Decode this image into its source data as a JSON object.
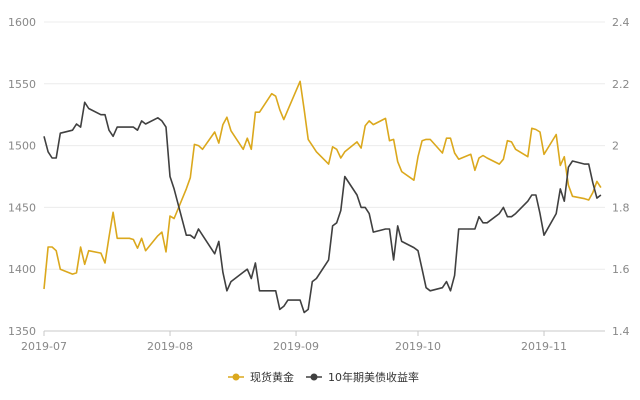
{
  "chart_data": {
    "type": "line",
    "x_ticks": [
      "2019-07",
      "2019-08",
      "2019-09",
      "2019-10",
      "2019-11"
    ],
    "y_left": {
      "min": 1350,
      "max": 1600,
      "ticks": [
        1350,
        1400,
        1450,
        1500,
        1550,
        1600
      ]
    },
    "y_right": {
      "min": 1.4,
      "max": 2.4,
      "ticks": [
        1.4,
        1.6,
        1.8,
        2,
        2.2,
        2.4
      ]
    },
    "grid": true,
    "legend_position": "bottom-center",
    "series": [
      {
        "name": "现货黄金",
        "axis": "left",
        "color": "#dba81d",
        "x": [
          "2019-07-01",
          "2019-07-02",
          "2019-07-03",
          "2019-07-04",
          "2019-07-05",
          "2019-07-08",
          "2019-07-09",
          "2019-07-10",
          "2019-07-11",
          "2019-07-12",
          "2019-07-15",
          "2019-07-16",
          "2019-07-17",
          "2019-07-18",
          "2019-07-19",
          "2019-07-22",
          "2019-07-23",
          "2019-07-24",
          "2019-07-25",
          "2019-07-26",
          "2019-07-29",
          "2019-07-30",
          "2019-07-31",
          "2019-08-01",
          "2019-08-02",
          "2019-08-05",
          "2019-08-06",
          "2019-08-07",
          "2019-08-08",
          "2019-08-09",
          "2019-08-12",
          "2019-08-13",
          "2019-08-14",
          "2019-08-15",
          "2019-08-16",
          "2019-08-19",
          "2019-08-20",
          "2019-08-21",
          "2019-08-22",
          "2019-08-23",
          "2019-08-26",
          "2019-08-27",
          "2019-08-28",
          "2019-08-29",
          "2019-08-30",
          "2019-09-02",
          "2019-09-03",
          "2019-09-04",
          "2019-09-05",
          "2019-09-06",
          "2019-09-09",
          "2019-09-10",
          "2019-09-11",
          "2019-09-12",
          "2019-09-13",
          "2019-09-16",
          "2019-09-17",
          "2019-09-18",
          "2019-09-19",
          "2019-09-20",
          "2019-09-23",
          "2019-09-24",
          "2019-09-25",
          "2019-09-26",
          "2019-09-27",
          "2019-09-30",
          "2019-10-01",
          "2019-10-02",
          "2019-10-03",
          "2019-10-04",
          "2019-10-07",
          "2019-10-08",
          "2019-10-09",
          "2019-10-10",
          "2019-10-11",
          "2019-10-14",
          "2019-10-15",
          "2019-10-16",
          "2019-10-17",
          "2019-10-18",
          "2019-10-21",
          "2019-10-22",
          "2019-10-23",
          "2019-10-24",
          "2019-10-25",
          "2019-10-28",
          "2019-10-29",
          "2019-10-30",
          "2019-10-31",
          "2019-11-01",
          "2019-11-04",
          "2019-11-05",
          "2019-11-06",
          "2019-11-07",
          "2019-11-08",
          "2019-11-11",
          "2019-11-12",
          "2019-11-13",
          "2019-11-14",
          "2019-11-15"
        ],
        "values": [
          1384,
          1418,
          1418,
          1415,
          1400,
          1396,
          1397,
          1418,
          1404,
          1415,
          1413,
          1405,
          1426,
          1446,
          1425,
          1425,
          1424,
          1417,
          1425,
          1415,
          1427,
          1430,
          1414,
          1443,
          1441,
          1465,
          1474,
          1501,
          1500,
          1497,
          1511,
          1502,
          1517,
          1523,
          1512,
          1497,
          1506,
          1497,
          1527,
          1527,
          1542,
          1540,
          1529,
          1521,
          1529,
          1552,
          1529,
          1505,
          1500,
          1495,
          1485,
          1499,
          1497,
          1490,
          1495,
          1503,
          1498,
          1516,
          1520,
          1517,
          1522,
          1504,
          1505,
          1487,
          1479,
          1472,
          1491,
          1504,
          1505,
          1505,
          1494,
          1506,
          1506,
          1494,
          1489,
          1493,
          1480,
          1490,
          1492,
          1490,
          1485,
          1489,
          1504,
          1503,
          1497,
          1491,
          1514,
          1513,
          1511,
          1493,
          1509,
          1484,
          1491,
          1468,
          1459,
          1457,
          1456,
          1462,
          1471,
          1466
        ]
      },
      {
        "name": "10年期美债收益率",
        "axis": "right",
        "color": "#404040",
        "x": [
          "2019-07-01",
          "2019-07-02",
          "2019-07-03",
          "2019-07-04",
          "2019-07-05",
          "2019-07-08",
          "2019-07-09",
          "2019-07-10",
          "2019-07-11",
          "2019-07-12",
          "2019-07-15",
          "2019-07-16",
          "2019-07-17",
          "2019-07-18",
          "2019-07-19",
          "2019-07-22",
          "2019-07-23",
          "2019-07-24",
          "2019-07-25",
          "2019-07-26",
          "2019-07-29",
          "2019-07-30",
          "2019-07-31",
          "2019-08-01",
          "2019-08-02",
          "2019-08-05",
          "2019-08-06",
          "2019-08-07",
          "2019-08-08",
          "2019-08-09",
          "2019-08-12",
          "2019-08-13",
          "2019-08-14",
          "2019-08-15",
          "2019-08-16",
          "2019-08-19",
          "2019-08-20",
          "2019-08-21",
          "2019-08-22",
          "2019-08-23",
          "2019-08-26",
          "2019-08-27",
          "2019-08-28",
          "2019-08-29",
          "2019-08-30",
          "2019-09-02",
          "2019-09-03",
          "2019-09-04",
          "2019-09-05",
          "2019-09-06",
          "2019-09-09",
          "2019-09-10",
          "2019-09-11",
          "2019-09-12",
          "2019-09-13",
          "2019-09-16",
          "2019-09-17",
          "2019-09-18",
          "2019-09-19",
          "2019-09-20",
          "2019-09-23",
          "2019-09-24",
          "2019-09-25",
          "2019-09-26",
          "2019-09-27",
          "2019-09-30",
          "2019-10-01",
          "2019-10-02",
          "2019-10-03",
          "2019-10-04",
          "2019-10-07",
          "2019-10-08",
          "2019-10-09",
          "2019-10-10",
          "2019-10-11",
          "2019-10-14",
          "2019-10-15",
          "2019-10-16",
          "2019-10-17",
          "2019-10-18",
          "2019-10-21",
          "2019-10-22",
          "2019-10-23",
          "2019-10-24",
          "2019-10-25",
          "2019-10-28",
          "2019-10-29",
          "2019-10-30",
          "2019-10-31",
          "2019-11-01",
          "2019-11-04",
          "2019-11-05",
          "2019-11-06",
          "2019-11-07",
          "2019-11-08",
          "2019-11-11",
          "2019-11-12",
          "2019-11-13",
          "2019-11-14",
          "2019-11-15"
        ],
        "values": [
          2.03,
          1.98,
          1.96,
          1.96,
          2.04,
          2.05,
          2.07,
          2.06,
          2.14,
          2.12,
          2.1,
          2.1,
          2.05,
          2.03,
          2.06,
          2.06,
          2.06,
          2.05,
          2.08,
          2.07,
          2.09,
          2.08,
          2.06,
          1.9,
          1.86,
          1.71,
          1.71,
          1.7,
          1.73,
          1.71,
          1.65,
          1.69,
          1.59,
          1.53,
          1.56,
          1.59,
          1.6,
          1.57,
          1.62,
          1.53,
          1.53,
          1.53,
          1.47,
          1.48,
          1.5,
          1.5,
          1.46,
          1.47,
          1.56,
          1.57,
          1.63,
          1.74,
          1.75,
          1.79,
          1.9,
          1.84,
          1.8,
          1.8,
          1.78,
          1.72,
          1.73,
          1.73,
          1.63,
          1.74,
          1.69,
          1.67,
          1.66,
          1.6,
          1.54,
          1.53,
          1.54,
          1.56,
          1.53,
          1.58,
          1.73,
          1.73,
          1.73,
          1.77,
          1.75,
          1.75,
          1.78,
          1.8,
          1.77,
          1.77,
          1.78,
          1.82,
          1.84,
          1.84,
          1.78,
          1.71,
          1.78,
          1.86,
          1.82,
          1.93,
          1.95,
          1.94,
          1.94,
          1.88,
          1.83,
          1.84
        ]
      }
    ]
  }
}
